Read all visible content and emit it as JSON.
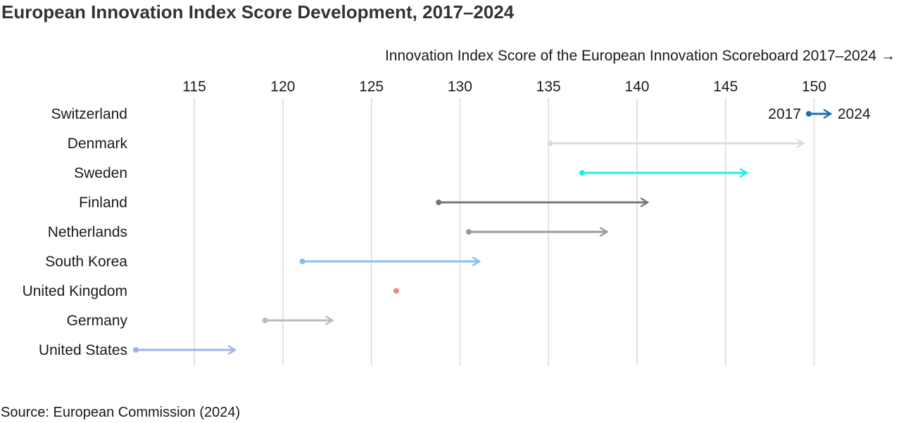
{
  "title": "European Innovation Index Score Development, 2017–2024",
  "source": "Source: European Commission (2024)",
  "chart_data": {
    "type": "dumbbell",
    "xlabel": "Innovation Index Score of the European Innovation Scoreboard 2017–2024 →",
    "xlim": [
      111.5,
      153
    ],
    "xticks": [
      115,
      120,
      125,
      130,
      135,
      140,
      145,
      150
    ],
    "grid": true,
    "legend": {
      "start_label": "2017",
      "end_label": "2024",
      "color": "#1a6fb0",
      "placement": "top-right"
    },
    "series": [
      {
        "country": "Switzerland",
        "start": null,
        "end": null,
        "color": "#1a6fb0"
      },
      {
        "country": "Denmark",
        "start": 135.1,
        "end": 149.4,
        "color": "#dddddd"
      },
      {
        "country": "Sweden",
        "start": 136.9,
        "end": 146.2,
        "color": "#19f2e0"
      },
      {
        "country": "Finland",
        "start": 128.8,
        "end": 140.6,
        "color": "#777777"
      },
      {
        "country": "Netherlands",
        "start": 130.5,
        "end": 138.3,
        "color": "#999999"
      },
      {
        "country": "South Korea",
        "start": 121.1,
        "end": 131.1,
        "color": "#85c0f2"
      },
      {
        "country": "United Kingdom",
        "start": 126.4,
        "end": 126.4,
        "color": "#f4877a"
      },
      {
        "country": "Germany",
        "start": 119.0,
        "end": 122.8,
        "color": "#bbbbbb"
      },
      {
        "country": "United States",
        "start": 111.7,
        "end": 117.3,
        "color": "#a3b0ec"
      }
    ]
  }
}
